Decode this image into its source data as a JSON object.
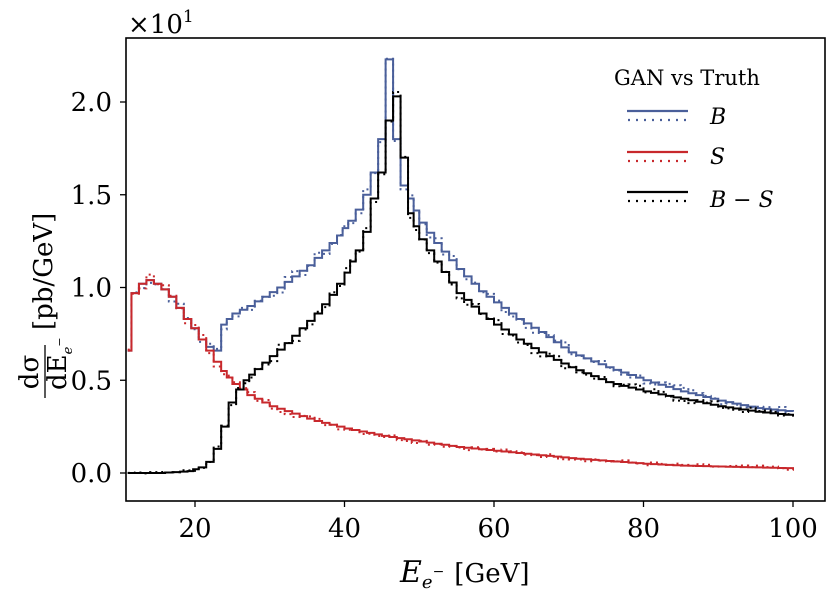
{
  "chart_data": {
    "type": "line",
    "style": "step-histogram",
    "title": "",
    "xlabel": "E_{e^-} [GeV]",
    "xlabel_main": "E",
    "xlabel_sub": "e",
    "xlabel_sup": "−",
    "xlabel_unit": "[GeV]",
    "ylabel": "dσ/dE_{e^-} [pb/GeV]",
    "ylabel_num": "dσ",
    "ylabel_den": "dE",
    "ylabel_den_sub": "e",
    "ylabel_den_sup": "−",
    "ylabel_unit": "[pb/GeV]",
    "y_multiplier": "×10",
    "y_multiplier_exp": "1",
    "xlim": [
      6,
      104
    ],
    "ylim": [
      -0.15,
      2.4
    ],
    "grid": false,
    "xticks": [
      20,
      40,
      60,
      80,
      100
    ],
    "xtick_labels": [
      "20",
      "40",
      "60",
      "80",
      "100"
    ],
    "yticks": [
      0.0,
      0.5,
      1.0,
      1.5,
      2.0
    ],
    "ytick_labels": [
      "0.0",
      "0.5",
      "1.0",
      "1.5",
      "2.0"
    ],
    "legend": {
      "title": "GAN vs Truth",
      "placement": "top-right",
      "entries": [
        {
          "label": "B",
          "series": "B"
        },
        {
          "label": "S",
          "series": "S"
        },
        {
          "label": "B − S",
          "series": "B-S"
        }
      ]
    },
    "series": [
      {
        "name": "B",
        "color": "#4a5f9a",
        "x": [
          11,
          11.5,
          12.5,
          13.5,
          14.5,
          15.5,
          16.5,
          17.5,
          18.5,
          19.5,
          20.5,
          21.5,
          22.5,
          23.5,
          25,
          27,
          29,
          31,
          33,
          35,
          37,
          39,
          40.5,
          41.5,
          42.5,
          43.5,
          44.5,
          45.5,
          46.5,
          47.5,
          48.5,
          50,
          52,
          55,
          58,
          60,
          63,
          66,
          70,
          75,
          80,
          85,
          90,
          95,
          100
        ],
        "values": [
          0.66,
          0.97,
          1.02,
          1.04,
          1.02,
          0.99,
          0.95,
          0.89,
          0.83,
          0.78,
          0.72,
          0.68,
          0.66,
          0.8,
          0.86,
          0.9,
          0.95,
          1.0,
          1.06,
          1.12,
          1.2,
          1.28,
          1.36,
          1.42,
          1.5,
          1.62,
          1.8,
          2.23,
          1.8,
          1.55,
          1.48,
          1.35,
          1.24,
          1.1,
          0.98,
          0.92,
          0.83,
          0.76,
          0.65,
          0.57,
          0.5,
          0.44,
          0.39,
          0.35,
          0.33
        ]
      },
      {
        "name": "S",
        "color": "#c8282c",
        "x": [
          11,
          11.5,
          12.5,
          13.5,
          14.5,
          15.5,
          16.5,
          17.5,
          18.5,
          19.5,
          20.5,
          21.5,
          22.5,
          23.5,
          25,
          27,
          30,
          33,
          36,
          40,
          45,
          50,
          55,
          60,
          65,
          70,
          75,
          80,
          85,
          90,
          95,
          100
        ],
        "values": [
          0.66,
          0.97,
          1.02,
          1.04,
          1.02,
          0.99,
          0.95,
          0.89,
          0.83,
          0.78,
          0.72,
          0.66,
          0.6,
          0.55,
          0.48,
          0.42,
          0.36,
          0.32,
          0.28,
          0.24,
          0.2,
          0.17,
          0.14,
          0.12,
          0.1,
          0.08,
          0.065,
          0.05,
          0.04,
          0.035,
          0.03,
          0.025
        ]
      },
      {
        "name": "B-S",
        "color": "#000000",
        "x": [
          11,
          15,
          19,
          20.5,
          21.5,
          22.5,
          23.5,
          24.5,
          25.5,
          26.5,
          28,
          30,
          32,
          34,
          36,
          38,
          40,
          41.5,
          42.5,
          43.5,
          44.5,
          45.5,
          46.5,
          47.5,
          48.5,
          50,
          52,
          55,
          58,
          60,
          63,
          66,
          70,
          75,
          80,
          85,
          90,
          95,
          100
        ],
        "values": [
          0.0,
          0.0,
          0.01,
          0.03,
          0.06,
          0.13,
          0.25,
          0.38,
          0.45,
          0.5,
          0.56,
          0.63,
          0.7,
          0.78,
          0.86,
          0.96,
          1.08,
          1.2,
          1.3,
          1.48,
          1.62,
          1.9,
          2.03,
          1.7,
          1.4,
          1.26,
          1.14,
          0.97,
          0.86,
          0.8,
          0.72,
          0.65,
          0.57,
          0.49,
          0.44,
          0.4,
          0.36,
          0.33,
          0.31
        ]
      }
    ]
  }
}
